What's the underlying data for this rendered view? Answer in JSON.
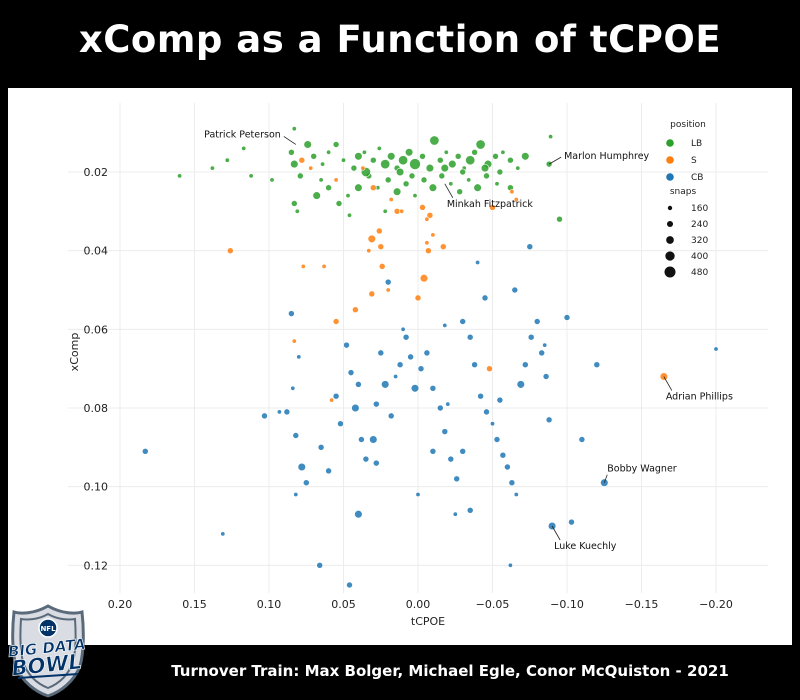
{
  "title": "xComp as a Function of tCPOE",
  "footer": "Turnover Train: Max Bolger, Michael Egle, Conor McQuiston - 2021",
  "logo": {
    "line1": "BIG DATA",
    "line2": "BOWL",
    "badge": "NFL"
  },
  "colors": {
    "LB": "#2ca02c",
    "S": "#ff7f0e",
    "CB": "#1f77b4"
  },
  "chart_data": {
    "type": "scatter",
    "xlabel": "tCPOE",
    "ylabel": "xComp",
    "xlim": [
      0.2,
      -0.2
    ],
    "ylim": [
      0.125,
      0.005
    ],
    "x_reversed": true,
    "y_reversed": true,
    "grid": true,
    "x_ticks": [
      "0.20",
      "0.15",
      "0.10",
      "0.05",
      "0.00",
      "−0.05",
      "−0.10",
      "−0.15",
      "−0.20"
    ],
    "y_ticks": [
      "0.02",
      "0.04",
      "0.06",
      "0.08",
      "0.10",
      "0.12"
    ],
    "legend": {
      "position": "top-right",
      "hue_title": "position",
      "hue": [
        "LB",
        "S",
        "CB"
      ],
      "size_title": "snaps",
      "sizes": [
        "160",
        "240",
        "320",
        "400",
        "480"
      ]
    },
    "annotations": [
      {
        "text": "Patrick Peterson",
        "x": 0.082,
        "y": 0.013,
        "label_side": "left"
      },
      {
        "text": "Marlon Humphrey",
        "x": -0.088,
        "y": 0.018,
        "label_side": "right"
      },
      {
        "text": "Minkah Fitzpatrick",
        "x": -0.018,
        "y": 0.023,
        "label_side": "below-right"
      },
      {
        "text": "Adrian Phillips",
        "x": -0.165,
        "y": 0.072,
        "label_side": "below-right"
      },
      {
        "text": "Bobby Wagner",
        "x": -0.125,
        "y": 0.099,
        "label_side": "above-right"
      },
      {
        "text": "Luke Kuechly",
        "x": -0.09,
        "y": 0.11,
        "label_side": "below-right"
      }
    ],
    "series": [
      {
        "name": "LB",
        "points": [
          [
            0.083,
            0.009,
            160
          ],
          [
            0.074,
            0.013,
            320
          ],
          [
            0.085,
            0.015,
            240
          ],
          [
            0.16,
            0.021,
            160
          ],
          [
            0.138,
            0.019,
            160
          ],
          [
            0.128,
            0.017,
            160
          ],
          [
            0.117,
            0.014,
            160
          ],
          [
            0.112,
            0.021,
            160
          ],
          [
            0.098,
            0.022,
            160
          ],
          [
            0.083,
            0.018,
            320
          ],
          [
            0.07,
            0.016,
            240
          ],
          [
            0.064,
            0.018,
            160
          ],
          [
            0.06,
            0.015,
            160
          ],
          [
            0.055,
            0.013,
            240
          ],
          [
            0.05,
            0.017,
            160
          ],
          [
            0.043,
            0.019,
            240
          ],
          [
            0.04,
            0.016,
            320
          ],
          [
            0.036,
            0.015,
            160
          ],
          [
            0.03,
            0.017,
            240
          ],
          [
            0.026,
            0.014,
            160
          ],
          [
            0.022,
            0.018,
            400
          ],
          [
            0.018,
            0.016,
            320
          ],
          [
            0.014,
            0.019,
            240
          ],
          [
            0.01,
            0.017,
            400
          ],
          [
            0.006,
            0.015,
            320
          ],
          [
            0.002,
            0.018,
            480
          ],
          [
            -0.003,
            0.016,
            240
          ],
          [
            -0.008,
            0.019,
            320
          ],
          [
            -0.011,
            0.012,
            400
          ],
          [
            -0.015,
            0.017,
            240
          ],
          [
            -0.019,
            0.015,
            160
          ],
          [
            -0.023,
            0.018,
            320
          ],
          [
            -0.027,
            0.016,
            240
          ],
          [
            -0.031,
            0.019,
            160
          ],
          [
            -0.035,
            0.017,
            400
          ],
          [
            -0.038,
            0.015,
            240
          ],
          [
            -0.042,
            0.013,
            400
          ],
          [
            -0.047,
            0.018,
            320
          ],
          [
            -0.052,
            0.016,
            240
          ],
          [
            -0.057,
            0.015,
            160
          ],
          [
            -0.062,
            0.017,
            240
          ],
          [
            -0.067,
            0.019,
            160
          ],
          [
            -0.072,
            0.016,
            320
          ],
          [
            -0.088,
            0.018,
            240
          ],
          [
            -0.089,
            0.011,
            160
          ],
          [
            -0.095,
            0.032,
            240
          ],
          [
            0.083,
            0.028,
            240
          ],
          [
            0.081,
            0.03,
            160
          ],
          [
            0.068,
            0.026,
            320
          ],
          [
            0.06,
            0.024,
            240
          ],
          [
            0.053,
            0.028,
            240
          ],
          [
            0.047,
            0.026,
            160
          ],
          [
            0.04,
            0.024,
            320
          ],
          [
            0.033,
            0.021,
            240
          ],
          [
            0.027,
            0.024,
            160
          ],
          [
            0.02,
            0.022,
            240
          ],
          [
            0.014,
            0.025,
            320
          ],
          [
            0.008,
            0.023,
            240
          ],
          [
            0.002,
            0.026,
            160
          ],
          [
            -0.004,
            0.022,
            240
          ],
          [
            -0.01,
            0.024,
            320
          ],
          [
            -0.016,
            0.021,
            240
          ],
          [
            -0.022,
            0.023,
            160
          ],
          [
            -0.028,
            0.025,
            240
          ],
          [
            -0.034,
            0.022,
            160
          ],
          [
            -0.04,
            0.024,
            320
          ],
          [
            -0.046,
            0.021,
            240
          ],
          [
            -0.053,
            0.023,
            160
          ],
          [
            -0.062,
            0.024,
            240
          ],
          [
            0.046,
            0.031,
            160
          ],
          [
            0.022,
            0.03,
            160
          ],
          [
            0.065,
            0.022,
            160
          ],
          [
            0.079,
            0.021,
            240
          ],
          [
            0.035,
            0.02,
            400
          ],
          [
            0.012,
            0.02,
            320
          ],
          [
            -0.018,
            0.019,
            320
          ],
          [
            -0.03,
            0.02,
            240
          ],
          [
            -0.045,
            0.019,
            320
          ],
          [
            -0.055,
            0.02,
            240
          ],
          [
            0.004,
            0.021,
            240
          ]
        ]
      },
      {
        "name": "S",
        "points": [
          [
            0.078,
            0.017,
            240
          ],
          [
            0.072,
            0.019,
            160
          ],
          [
            0.055,
            0.022,
            160
          ],
          [
            0.037,
            0.019,
            160
          ],
          [
            0.03,
            0.024,
            240
          ],
          [
            0.018,
            0.027,
            160
          ],
          [
            0.014,
            0.03,
            240
          ],
          [
            0.026,
            0.035,
            240
          ],
          [
            0.031,
            0.037,
            320
          ],
          [
            0.025,
            0.039,
            240
          ],
          [
            0.033,
            0.04,
            160
          ],
          [
            0.126,
            0.04,
            240
          ],
          [
            0.077,
            0.044,
            160
          ],
          [
            0.063,
            0.044,
            160
          ],
          [
            -0.008,
            0.031,
            240
          ],
          [
            -0.006,
            0.032,
            160
          ],
          [
            -0.01,
            0.036,
            160
          ],
          [
            -0.006,
            0.038,
            160
          ],
          [
            -0.017,
            0.039,
            240
          ],
          [
            -0.007,
            0.04,
            240
          ],
          [
            -0.004,
            0.047,
            320
          ],
          [
            0.024,
            0.044,
            240
          ],
          [
            0.02,
            0.05,
            160
          ],
          [
            0.031,
            0.051,
            240
          ],
          [
            0.042,
            0.055,
            240
          ],
          [
            0.055,
            0.058,
            240
          ],
          [
            0.0,
            0.052,
            240
          ],
          [
            0.083,
            0.063,
            160
          ],
          [
            -0.063,
            0.025,
            160
          ],
          [
            -0.066,
            0.027,
            160
          ],
          [
            -0.05,
            0.029,
            240
          ],
          [
            -0.048,
            0.07,
            240
          ],
          [
            -0.165,
            0.072,
            320
          ],
          [
            0.058,
            0.078,
            160
          ],
          [
            0.011,
            0.03,
            160
          ],
          [
            -0.003,
            0.029,
            240
          ]
        ]
      },
      {
        "name": "CB",
        "points": [
          [
            0.085,
            0.056,
            240
          ],
          [
            0.183,
            0.091,
            240
          ],
          [
            0.131,
            0.112,
            160
          ],
          [
            0.103,
            0.082,
            240
          ],
          [
            0.088,
            0.081,
            240
          ],
          [
            0.093,
            0.081,
            160
          ],
          [
            0.082,
            0.087,
            240
          ],
          [
            0.08,
            0.067,
            160
          ],
          [
            0.084,
            0.075,
            160
          ],
          [
            0.082,
            0.102,
            160
          ],
          [
            0.078,
            0.095,
            320
          ],
          [
            0.075,
            0.099,
            240
          ],
          [
            0.065,
            0.09,
            240
          ],
          [
            0.06,
            0.096,
            240
          ],
          [
            0.055,
            0.077,
            240
          ],
          [
            0.052,
            0.084,
            240
          ],
          [
            0.048,
            0.064,
            240
          ],
          [
            0.045,
            0.071,
            240
          ],
          [
            0.042,
            0.08,
            320
          ],
          [
            0.04,
            0.074,
            240
          ],
          [
            0.038,
            0.088,
            240
          ],
          [
            0.035,
            0.093,
            240
          ],
          [
            0.03,
            0.088,
            320
          ],
          [
            0.028,
            0.079,
            240
          ],
          [
            0.025,
            0.066,
            240
          ],
          [
            0.022,
            0.074,
            320
          ],
          [
            0.018,
            0.082,
            240
          ],
          [
            0.015,
            0.072,
            160
          ],
          [
            0.012,
            0.069,
            240
          ],
          [
            0.008,
            0.062,
            240
          ],
          [
            0.005,
            0.067,
            240
          ],
          [
            0.002,
            0.075,
            320
          ],
          [
            -0.002,
            0.07,
            240
          ],
          [
            -0.006,
            0.066,
            240
          ],
          [
            -0.01,
            0.075,
            240
          ],
          [
            -0.015,
            0.08,
            240
          ],
          [
            -0.018,
            0.086,
            240
          ],
          [
            -0.022,
            0.093,
            240
          ],
          [
            -0.026,
            0.098,
            240
          ],
          [
            -0.03,
            0.058,
            240
          ],
          [
            -0.035,
            0.062,
            240
          ],
          [
            -0.038,
            0.069,
            240
          ],
          [
            -0.042,
            0.077,
            240
          ],
          [
            -0.046,
            0.081,
            240
          ],
          [
            -0.05,
            0.084,
            160
          ],
          [
            -0.053,
            0.088,
            240
          ],
          [
            -0.057,
            0.092,
            240
          ],
          [
            -0.06,
            0.095,
            240
          ],
          [
            -0.063,
            0.099,
            240
          ],
          [
            -0.066,
            0.102,
            160
          ],
          [
            -0.069,
            0.074,
            320
          ],
          [
            -0.072,
            0.069,
            240
          ],
          [
            -0.076,
            0.062,
            240
          ],
          [
            -0.08,
            0.058,
            240
          ],
          [
            -0.083,
            0.066,
            240
          ],
          [
            -0.086,
            0.072,
            240
          ],
          [
            -0.088,
            0.083,
            240
          ],
          [
            -0.09,
            0.11,
            320
          ],
          [
            -0.1,
            0.057,
            240
          ],
          [
            -0.11,
            0.088,
            240
          ],
          [
            -0.12,
            0.069,
            240
          ],
          [
            -0.125,
            0.099,
            320
          ],
          [
            -0.103,
            0.109,
            240
          ],
          [
            -0.2,
            0.065,
            160
          ],
          [
            -0.075,
            0.039,
            240
          ],
          [
            -0.045,
            0.052,
            240
          ],
          [
            -0.065,
            0.05,
            240
          ],
          [
            -0.085,
            0.064,
            160
          ],
          [
            0.046,
            0.125,
            240
          ],
          [
            0.066,
            0.12,
            240
          ],
          [
            -0.062,
            0.12,
            160
          ],
          [
            0.02,
            0.048,
            240
          ],
          [
            0.0,
            0.102,
            160
          ],
          [
            -0.02,
            0.079,
            160
          ],
          [
            0.028,
            0.094,
            240
          ],
          [
            -0.035,
            0.106,
            240
          ],
          [
            -0.025,
            0.107,
            160
          ],
          [
            -0.04,
            0.043,
            160
          ],
          [
            0.04,
            0.107,
            320
          ],
          [
            -0.01,
            0.091,
            240
          ],
          [
            -0.055,
            0.078,
            240
          ],
          [
            -0.03,
            0.091,
            240
          ],
          [
            0.01,
            0.06,
            160
          ],
          [
            -0.018,
            0.059,
            160
          ]
        ]
      }
    ]
  }
}
